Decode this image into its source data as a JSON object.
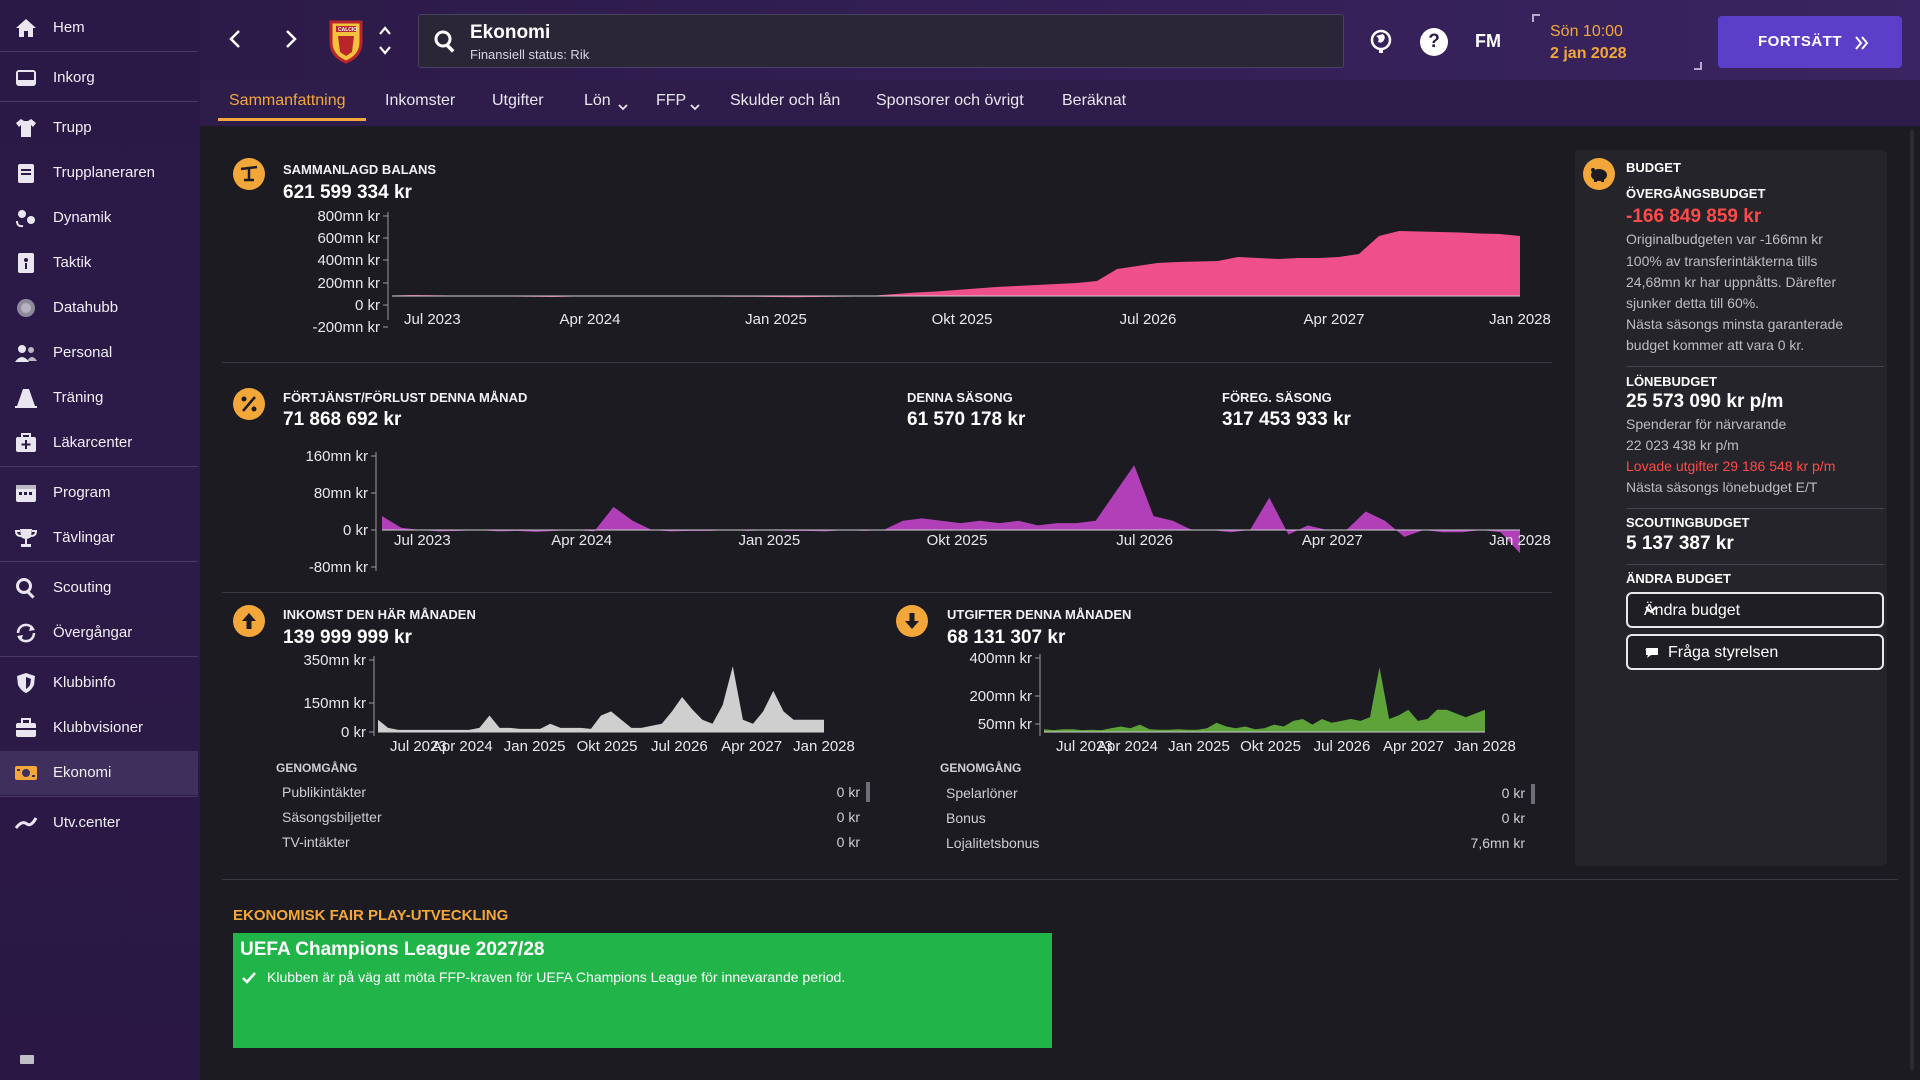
{
  "sidebar": {
    "items": [
      {
        "label": "Hem",
        "icon": "home-icon"
      },
      {
        "label": "Inkorg",
        "icon": "inbox-icon"
      },
      {
        "label": "Trupp",
        "icon": "shirt-icon"
      },
      {
        "label": "Trupplaneraren",
        "icon": "clipboard-icon"
      },
      {
        "label": "Dynamik",
        "icon": "dynamics-icon"
      },
      {
        "label": "Taktik",
        "icon": "tactics-board-icon"
      },
      {
        "label": "Datahubb",
        "icon": "data-hub-icon"
      },
      {
        "label": "Personal",
        "icon": "staff-icon"
      },
      {
        "label": "Träning",
        "icon": "cone-icon"
      },
      {
        "label": "Läkarcenter",
        "icon": "medical-kit-icon"
      },
      {
        "label": "Program",
        "icon": "calendar-icon"
      },
      {
        "label": "Tävlingar",
        "icon": "trophy-icon"
      },
      {
        "label": "Scouting",
        "icon": "magnifier-icon"
      },
      {
        "label": "Övergångar",
        "icon": "transfer-arrows-icon"
      },
      {
        "label": "Klubbinfo",
        "icon": "shield-icon"
      },
      {
        "label": "Klubbvisioner",
        "icon": "briefcase-icon"
      },
      {
        "label": "Ekonomi",
        "icon": "money-icon",
        "active": true
      },
      {
        "label": "Utv.center",
        "icon": "development-curve-icon"
      }
    ]
  },
  "header": {
    "title": "Ekonomi",
    "subtitle": "Finansiell status: Rik",
    "club_badge_text": "CALCIO",
    "date_line1": "Sön 10:00",
    "date_line2": "2 jan 2028",
    "fm_label": "FM",
    "continue_label": "FORTSÄTT"
  },
  "tabs": [
    "Sammanfattning",
    "Inkomster",
    "Utgifter",
    "Lön",
    "FFP",
    "Skulder och lån",
    "Sponsorer och övrigt",
    "Beräknat"
  ],
  "balance": {
    "title": "SAMMANLAGD BALANS",
    "value": "621 599 334 kr"
  },
  "profit": {
    "title": "FÖRTJÄNST/FÖRLUST DENNA MÅNAD",
    "value": "71 868 692 kr",
    "season_title": "DENNA SÄSONG",
    "season_value": "61 570 178 kr",
    "prev_title": "FÖREG. SÄSONG",
    "prev_value": "317 453 933 kr"
  },
  "income": {
    "title": "INKOMST DEN HÄR MÅNADEN",
    "value": "139 999 999 kr",
    "breakdown_title": "GENOMGÅNG",
    "rows": [
      {
        "label": "Publikintäkter",
        "value": "0 kr"
      },
      {
        "label": "Säsongsbiljetter",
        "value": "0 kr"
      },
      {
        "label": "TV-intäkter",
        "value": "0 kr"
      }
    ]
  },
  "expenses": {
    "title": "UTGIFTER DENNA MÅNADEN",
    "value": "68 131 307 kr",
    "breakdown_title": "GENOMGÅNG",
    "rows": [
      {
        "label": "Spelarlöner",
        "value": "0 kr"
      },
      {
        "label": "Bonus",
        "value": "0 kr"
      },
      {
        "label": "Lojalitetsbonus",
        "value": "7,6mn kr"
      }
    ]
  },
  "budget": {
    "title": "BUDGET",
    "transfer_title": "ÖVERGÅNGSBUDGET",
    "transfer_value": "-166 849 859 kr",
    "transfer_text": [
      "Originalbudgeten var -166mn kr",
      "100% av transferintäkterna tills",
      "24,68mn kr har uppnåtts. Därefter",
      "sjunker detta till 60%.",
      "Nästa säsongs minsta garanterade",
      "budget kommer att vara 0 kr."
    ],
    "wage_title": "LÖNEBUDGET",
    "wage_value": "25 573 090 kr p/m",
    "wage_text1": "Spenderar för närvarande",
    "wage_text2": "22 023 438 kr p/m",
    "wage_promised": "Lovade utgifter 29 186 548 kr p/m",
    "wage_next": "Nästa säsongs lönebudget E/T",
    "scout_title": "SCOUTINGBUDGET",
    "scout_value": "5 137 387 kr",
    "change_title": "ÄNDRA BUDGET",
    "change_dropdown": "Ändra budget",
    "ask_board": "Fråga styrelsen"
  },
  "ffp": {
    "title": "EKONOMISK FAIR PLAY-UTVECKLING",
    "competition": "UEFA Champions League 2027/28",
    "text": "Klubben är på väg att möta FFP-kraven för UEFA Champions League för innevarande period."
  },
  "colors": {
    "accent": "#f3a73b",
    "balance": "#f0508a",
    "profit": "#b13fb8",
    "income": "#cfcfcf",
    "expense": "#5ea23a",
    "ffp_green": "#21b449",
    "negative": "#ff4a4a",
    "continue": "#5b3fc9"
  },
  "chart_data": [
    {
      "type": "area",
      "name": "balance",
      "x_labels": [
        "Jul 2023",
        "Apr 2024",
        "Jan 2025",
        "Okt 2025",
        "Jul 2026",
        "Apr 2027",
        "Jan 2028"
      ],
      "y_labels": [
        "800mn kr",
        "600mn kr",
        "400mn kr",
        "200mn kr",
        "0 kr",
        "-200mn kr"
      ],
      "ylim": [
        -200,
        800
      ],
      "values": [
        5,
        10,
        8,
        5,
        2,
        -2,
        -5,
        -8,
        -10,
        -5,
        -2,
        0,
        3,
        5,
        2,
        -3,
        -5,
        -8,
        -8,
        -10,
        -12,
        -10,
        -8,
        -5,
        5,
        20,
        35,
        45,
        60,
        75,
        90,
        100,
        110,
        120,
        130,
        150,
        270,
        300,
        330,
        340,
        345,
        350,
        390,
        380,
        370,
        380,
        380,
        390,
        420,
        600,
        650,
        645,
        640,
        635,
        625,
        620,
        600
      ]
    },
    {
      "type": "area",
      "name": "profit",
      "x_labels": [
        "Jul 2023",
        "Apr 2024",
        "Jan 2025",
        "Okt 2025",
        "Jul 2026",
        "Apr 2027",
        "Jan 2028"
      ],
      "y_labels": [
        "160mn kr",
        "80mn kr",
        "0 kr",
        "-80mn kr"
      ],
      "ylim": [
        -80,
        160
      ],
      "values": [
        30,
        5,
        0,
        -3,
        -2,
        0,
        -3,
        -2,
        -4,
        -2,
        0,
        -3,
        50,
        20,
        0,
        -3,
        -2,
        -2,
        0,
        -2,
        0,
        -2,
        -2,
        -3,
        0,
        -2,
        0,
        20,
        25,
        20,
        15,
        20,
        15,
        20,
        10,
        15,
        15,
        20,
        80,
        140,
        30,
        20,
        0,
        0,
        -5,
        0,
        70,
        -10,
        10,
        0,
        0,
        40,
        20,
        -15,
        0,
        -5,
        -5,
        0,
        -5,
        -50
      ]
    },
    {
      "type": "area",
      "name": "income",
      "x_labels": [
        "Jul 2023",
        "Apr 2024",
        "Jan 2025",
        "Okt 2025",
        "Jul 2026",
        "Apr 2027",
        "Jan 2028"
      ],
      "y_labels": [
        "350mn kr",
        "150mn kr",
        "0 kr"
      ],
      "ylim": [
        0,
        350
      ],
      "values": [
        60,
        20,
        10,
        10,
        10,
        10,
        10,
        10,
        10,
        10,
        20,
        80,
        20,
        20,
        15,
        15,
        15,
        40,
        20,
        20,
        20,
        15,
        80,
        100,
        60,
        20,
        20,
        30,
        40,
        100,
        170,
        110,
        60,
        40,
        130,
        320,
        60,
        40,
        100,
        200,
        100,
        60,
        60,
        60,
        60
      ]
    },
    {
      "type": "area",
      "name": "expenses",
      "x_labels": [
        "Jul 2023",
        "Apr 2024",
        "Jan 2025",
        "Okt 2025",
        "Jul 2026",
        "Apr 2027",
        "Jan 2028"
      ],
      "y_labels": [
        "400mn kr",
        "200mn kr",
        "50mn kr"
      ],
      "ylim": [
        0,
        400
      ],
      "values": [
        15,
        10,
        15,
        15,
        10,
        12,
        10,
        20,
        30,
        20,
        40,
        15,
        12,
        12,
        15,
        12,
        12,
        20,
        50,
        30,
        20,
        30,
        15,
        20,
        40,
        30,
        60,
        70,
        40,
        70,
        50,
        60,
        70,
        60,
        80,
        350,
        70,
        90,
        120,
        60,
        70,
        120,
        120,
        100,
        80,
        100,
        120
      ]
    }
  ]
}
